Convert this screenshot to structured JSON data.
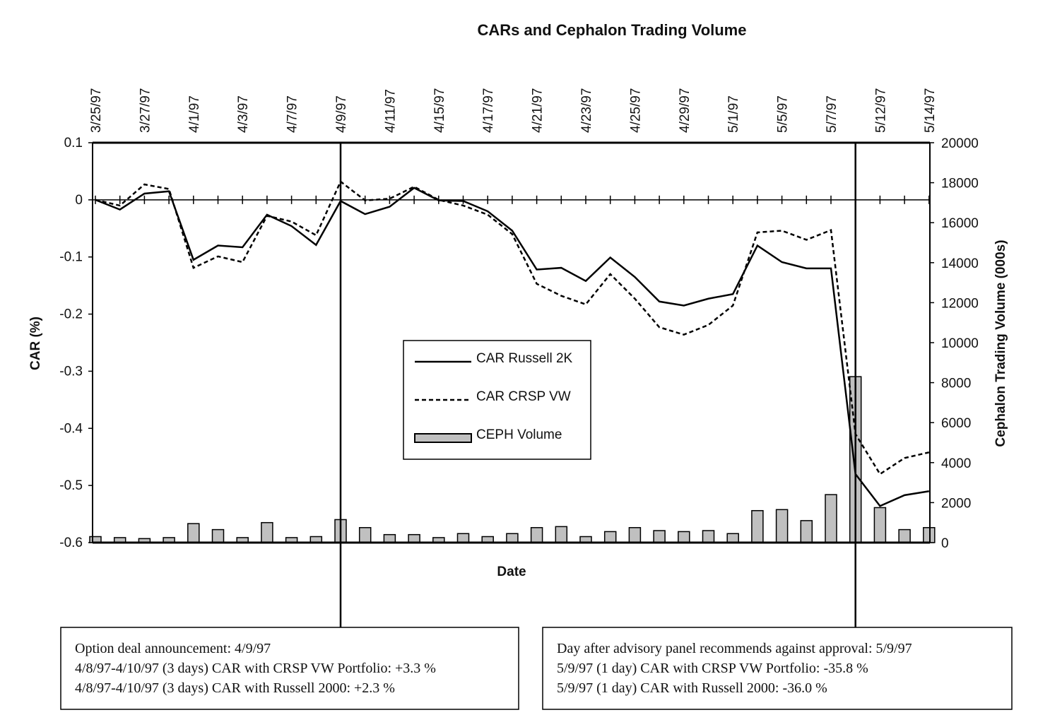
{
  "chart_data": {
    "type": "line-bar",
    "title": "CARs and Cephalon Trading Volume",
    "x_label": "Date",
    "y_label": "CAR (%)",
    "y2_label": "Cephalon Trading Volume (000s)",
    "categories": [
      "3/25/97",
      null,
      "3/27/97",
      null,
      "4/1/97",
      null,
      "4/3/97",
      null,
      "4/7/97",
      null,
      "4/9/97",
      null,
      "4/11/97",
      null,
      "4/15/97",
      null,
      "4/17/97",
      null,
      "4/21/97",
      null,
      "4/23/97",
      null,
      "4/25/97",
      null,
      "4/29/97",
      null,
      "5/1/97",
      null,
      "5/5/97",
      null,
      "5/7/97",
      null,
      "5/12/97",
      null,
      "5/14/97"
    ],
    "series": [
      {
        "name": "CAR Russell 2K",
        "color": "#000000",
        "style": "solid",
        "values": [
          0,
          -0.017,
          0.011,
          0.015,
          -0.105,
          -0.08,
          -0.083,
          -0.026,
          -0.046,
          -0.079,
          -0.002,
          -0.025,
          -0.012,
          0.021,
          -0.001,
          -0.002,
          -0.02,
          -0.054,
          -0.122,
          -0.119,
          -0.142,
          -0.101,
          -0.135,
          -0.178,
          -0.185,
          -0.173,
          -0.165,
          -0.08,
          -0.109,
          -0.12,
          -0.12,
          -0.48,
          -0.536,
          -0.517,
          -0.51
        ]
      },
      {
        "name": "CAR CRSP VW",
        "color": "#000000",
        "style": "dashed",
        "values": [
          0,
          -0.01,
          0.027,
          0.019,
          -0.119,
          -0.099,
          -0.109,
          -0.028,
          -0.038,
          -0.062,
          0.032,
          -0.001,
          0.002,
          0.023,
          0,
          -0.01,
          -0.026,
          -0.06,
          -0.147,
          -0.168,
          -0.183,
          -0.13,
          -0.173,
          -0.223,
          -0.236,
          -0.219,
          -0.185,
          -0.057,
          -0.054,
          -0.07,
          -0.053,
          -0.41,
          -0.48,
          -0.452,
          -0.442
        ]
      },
      {
        "name": "CEPH Volume",
        "color": "#c0c0c0",
        "type": "bar",
        "axis": "y2",
        "values": [
          300,
          250,
          200,
          250,
          950,
          650,
          250,
          1000,
          250,
          300,
          1150,
          750,
          400,
          400,
          250,
          450,
          300,
          450,
          750,
          800,
          300,
          550,
          750,
          600,
          550,
          600,
          450,
          1600,
          1650,
          1100,
          2400,
          8300,
          1750,
          650,
          750
        ]
      }
    ],
    "ylim": [
      -0.6,
      0.1
    ],
    "yticks": [
      0.1,
      0,
      -0.1,
      -0.2,
      -0.3,
      -0.4,
      -0.5,
      -0.6
    ],
    "y2lim": [
      0,
      20000
    ],
    "y2ticks": [
      0,
      2000,
      4000,
      6000,
      8000,
      10000,
      12000,
      14000,
      16000,
      18000,
      20000
    ],
    "annotations": [
      {
        "category_index": 10,
        "lines": [
          "Option deal announcement:  4/9/97",
          "4/8/97-4/10/97 (3 days) CAR with CRSP VW Portfolio: +3.3 %",
          "4/8/97-4/10/97 (3 days) CAR with Russell 2000: +2.3 %"
        ]
      },
      {
        "category_index": 31,
        "lines": [
          "Day after advisory panel recommends against approval:  5/9/97",
          "5/9/97 (1 day) CAR with CRSP VW Portfolio:  -35.8 %",
          "5/9/97 (1 day) CAR with Russell 2000:  -36.0 %"
        ]
      }
    ]
  }
}
